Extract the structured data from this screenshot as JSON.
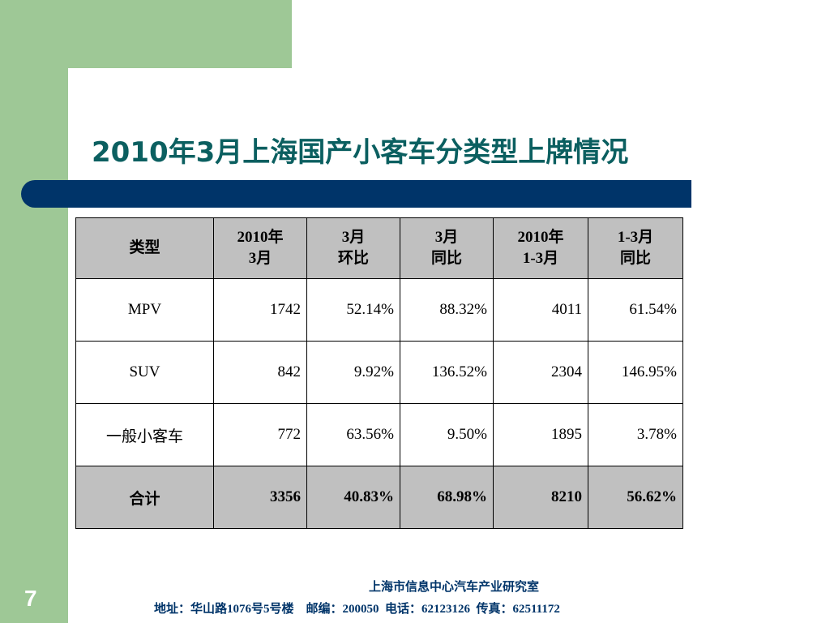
{
  "slide": {
    "title": "2010年3月上海国产小客车分类型上牌情况",
    "page_number": "7"
  },
  "table": {
    "headers": [
      "类型",
      "2010年\n3月",
      "3月\n环比",
      "3月\n同比",
      "2010年\n1-3月",
      "1-3月\n同比"
    ],
    "rows": [
      [
        "MPV",
        "1742",
        "52.14%",
        "88.32%",
        "4011",
        "61.54%"
      ],
      [
        "SUV",
        "842",
        "9.92%",
        "136.52%",
        "2304",
        "146.95%"
      ],
      [
        "一般小客车",
        "772",
        "63.56%",
        "9.50%",
        "1895",
        "3.78%"
      ]
    ],
    "total": [
      "合计",
      "3356",
      "40.83%",
      "68.98%",
      "8210",
      "56.62%"
    ]
  },
  "footer": {
    "org": "上海市信息中心汽车产业研究室",
    "address": "地址：华山路1076号5号楼    邮编：200050  电话：62123126  传真：62511172"
  },
  "colors": {
    "title": "#0b5f60",
    "accent_bar": "#003469",
    "side_green": "#9ec896",
    "header_fill": "#c0c0c0"
  }
}
